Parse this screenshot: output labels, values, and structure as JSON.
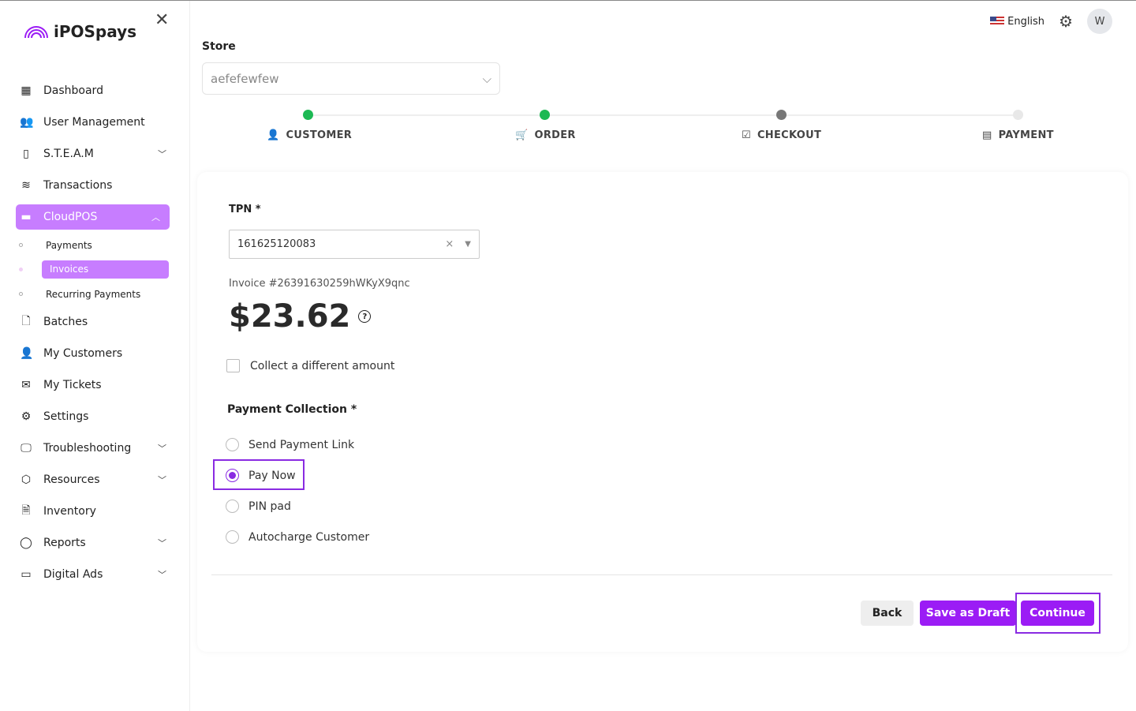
{
  "brand": {
    "name": "iPOSpays",
    "accent": "#9b1cf5",
    "nav_active": "#c77dff"
  },
  "sidebar": {
    "items": [
      {
        "label": "Dashboard",
        "icon": "grid-icon"
      },
      {
        "label": "User Management",
        "icon": "users-icon"
      },
      {
        "label": "S.T.E.A.M",
        "icon": "phone-icon",
        "chevron": "down"
      },
      {
        "label": "Transactions",
        "icon": "layers-icon"
      },
      {
        "label": "CloudPOS",
        "icon": "card-icon",
        "chevron": "up",
        "active": true
      },
      {
        "label": "Batches",
        "icon": "file-icon"
      },
      {
        "label": "My Customers",
        "icon": "user-icon"
      },
      {
        "label": "My Tickets",
        "icon": "inbox-icon"
      },
      {
        "label": "Settings",
        "icon": "gear-icon"
      },
      {
        "label": "Troubleshooting",
        "icon": "monitor-icon",
        "chevron": "down"
      },
      {
        "label": "Resources",
        "icon": "box-icon",
        "chevron": "down"
      },
      {
        "label": "Inventory",
        "icon": "doc-icon"
      },
      {
        "label": "Reports",
        "icon": "chat-icon",
        "chevron": "down"
      },
      {
        "label": "Digital Ads",
        "icon": "screen-icon",
        "chevron": "down"
      }
    ],
    "subitems": [
      {
        "label": "Payments"
      },
      {
        "label": "Invoices",
        "active": true
      },
      {
        "label": "Recurring Payments"
      }
    ]
  },
  "topbar": {
    "language": "English",
    "avatar": "W"
  },
  "store": {
    "label": "Store",
    "value": "aefefewfew"
  },
  "steps": [
    {
      "label": "CUSTOMER",
      "status": "done"
    },
    {
      "label": "ORDER",
      "status": "done"
    },
    {
      "label": "CHECKOUT",
      "status": "current"
    },
    {
      "label": "PAYMENT",
      "status": "pending"
    }
  ],
  "form": {
    "tpn_label": "TPN *",
    "tpn_value": "161625120083",
    "invoice": "Invoice #26391630259hWKyX9qnc",
    "amount": "$23.62",
    "different_amount": "Collect a different amount",
    "collection_label": "Payment Collection *",
    "options": [
      {
        "label": "Send Payment Link"
      },
      {
        "label": "Pay Now",
        "selected": true
      },
      {
        "label": "PIN pad"
      },
      {
        "label": "Autocharge Customer"
      }
    ]
  },
  "buttons": {
    "back": "Back",
    "draft": "Save as Draft",
    "continue": "Continue"
  }
}
